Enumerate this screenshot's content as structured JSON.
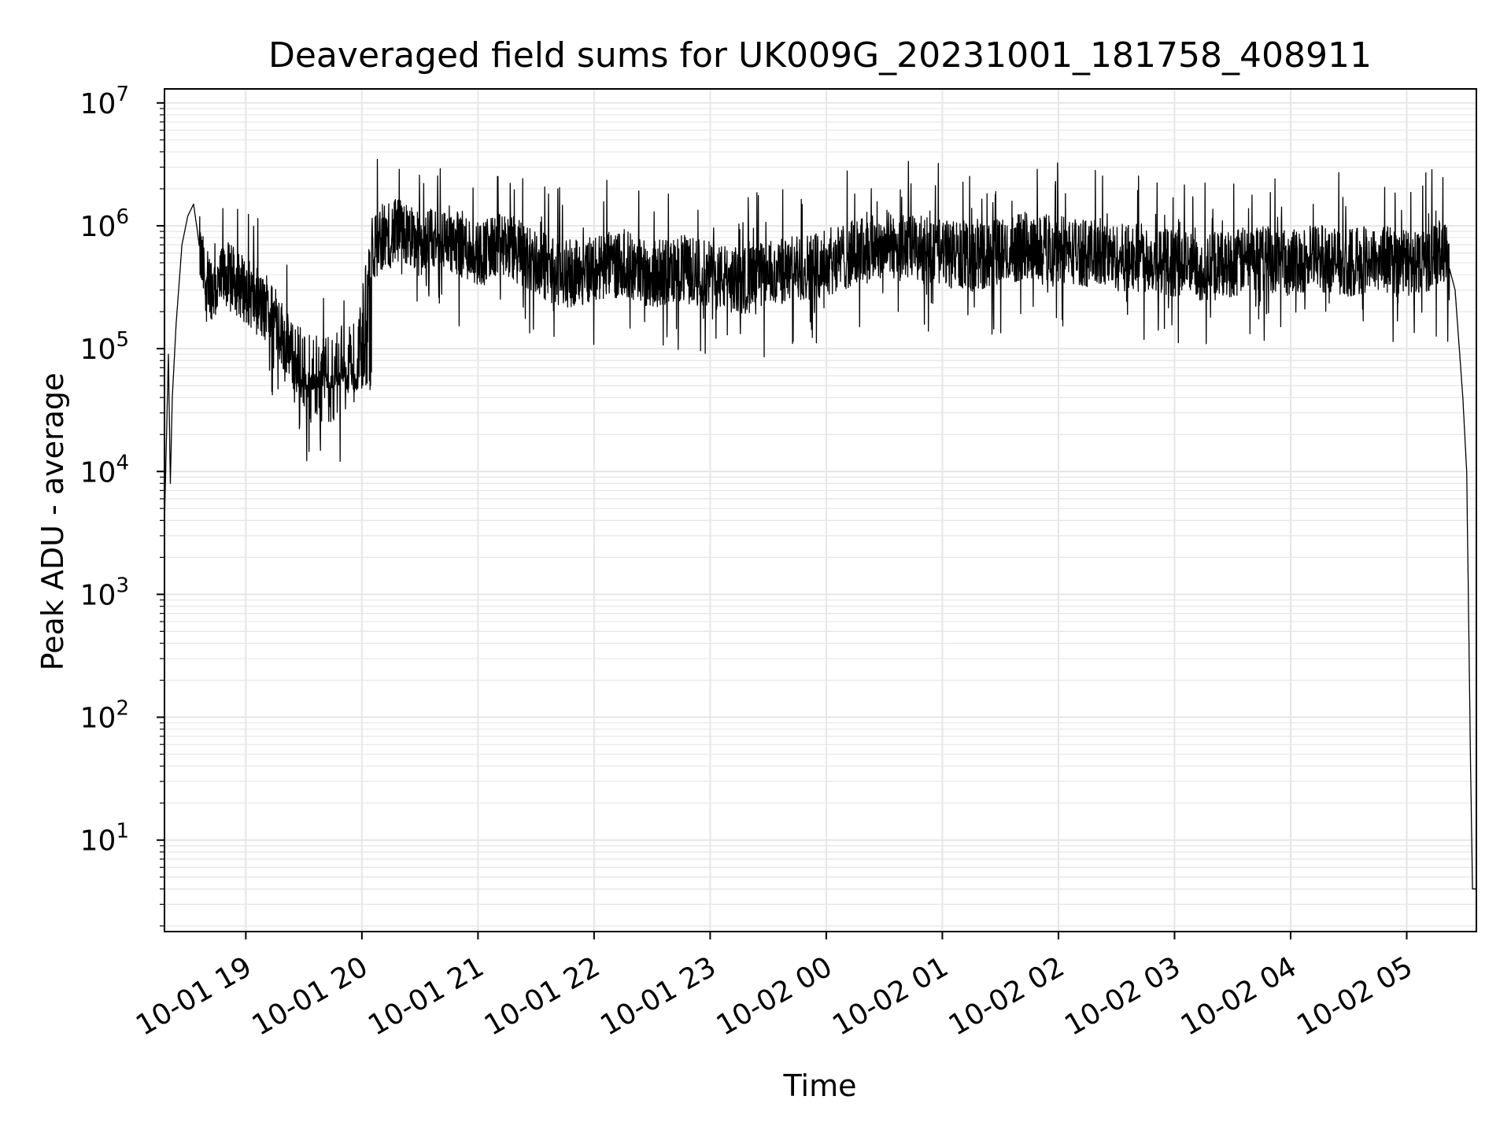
{
  "chart_data": {
    "type": "line",
    "title": "Deaveraged field sums for UK009G_20231001_181758_408911",
    "xlabel": "Time",
    "ylabel": "Peak ADU - average",
    "y_scale": "log",
    "ylim": [
      1.8,
      13000000
    ],
    "xlim": [
      "2023-10-01 18:17:58",
      "2023-10-02 05:36:00"
    ],
    "grid": true,
    "grid_color": "#e6e6e6",
    "line_color": "#000000",
    "x_ticks": [
      {
        "label": "10-01 19",
        "t": "2023-10-01 19:00:00"
      },
      {
        "label": "10-01 20",
        "t": "2023-10-01 20:00:00"
      },
      {
        "label": "10-01 21",
        "t": "2023-10-01 21:00:00"
      },
      {
        "label": "10-01 22",
        "t": "2023-10-01 22:00:00"
      },
      {
        "label": "10-01 23",
        "t": "2023-10-01 23:00:00"
      },
      {
        "label": "10-02 00",
        "t": "2023-10-02 00:00:00"
      },
      {
        "label": "10-02 01",
        "t": "2023-10-02 01:00:00"
      },
      {
        "label": "10-02 02",
        "t": "2023-10-02 02:00:00"
      },
      {
        "label": "10-02 03",
        "t": "2023-10-02 03:00:00"
      },
      {
        "label": "10-02 04",
        "t": "2023-10-02 04:00:00"
      },
      {
        "label": "10-02 05",
        "t": "2023-10-02 05:00:00"
      }
    ],
    "y_ticks": [
      {
        "base": "10",
        "exp": "1",
        "value": 10
      },
      {
        "base": "10",
        "exp": "2",
        "value": 100
      },
      {
        "base": "10",
        "exp": "3",
        "value": 1000
      },
      {
        "base": "10",
        "exp": "4",
        "value": 10000
      },
      {
        "base": "10",
        "exp": "5",
        "value": 100000
      },
      {
        "base": "10",
        "exp": "6",
        "value": 1000000
      },
      {
        "base": "10",
        "exp": "7",
        "value": 10000000
      }
    ],
    "series": [
      {
        "x": [
          "2023-10-01 18:17:58",
          "2023-10-01 18:20:00",
          "2023-10-01 18:21:00",
          "2023-10-01 18:22:00",
          "2023-10-01 18:24:00",
          "2023-10-01 18:27:00",
          "2023-10-01 18:30:00",
          "2023-10-01 18:33:00",
          "2023-10-01 18:35:00",
          "2023-10-01 18:37:00",
          "2023-10-01 18:40:00",
          "2023-10-01 18:45:00",
          "2023-10-01 18:50:00",
          "2023-10-01 18:55:00",
          "2023-10-01 19:00:00",
          "2023-10-01 19:05:00",
          "2023-10-01 19:10:00",
          "2023-10-01 19:15:00",
          "2023-10-01 19:20:00",
          "2023-10-01 19:25:00",
          "2023-10-01 19:30:00",
          "2023-10-01 19:35:00",
          "2023-10-01 19:40:00",
          "2023-10-01 19:45:00",
          "2023-10-01 19:50:00",
          "2023-10-01 19:55:00",
          "2023-10-01 20:00:00",
          "2023-10-01 20:05:00",
          "2023-10-01 20:10:00",
          "2023-10-01 20:20:00",
          "2023-10-01 20:30:00",
          "2023-10-01 20:45:00",
          "2023-10-01 21:00:00",
          "2023-10-01 21:15:00",
          "2023-10-01 21:30:00",
          "2023-10-01 21:45:00",
          "2023-10-01 22:00:00",
          "2023-10-01 22:15:00",
          "2023-10-01 22:30:00",
          "2023-10-01 22:45:00",
          "2023-10-01 23:00:00",
          "2023-10-01 23:15:00",
          "2023-10-01 23:30:00",
          "2023-10-01 23:45:00",
          "2023-10-02 00:00:00",
          "2023-10-02 00:15:00",
          "2023-10-02 00:30:00",
          "2023-10-02 00:45:00",
          "2023-10-02 01:00:00",
          "2023-10-02 01:15:00",
          "2023-10-02 01:30:00",
          "2023-10-02 01:45:00",
          "2023-10-02 02:00:00",
          "2023-10-02 02:15:00",
          "2023-10-02 02:30:00",
          "2023-10-02 02:45:00",
          "2023-10-02 03:00:00",
          "2023-10-02 03:15:00",
          "2023-10-02 03:30:00",
          "2023-10-02 03:45:00",
          "2023-10-02 04:00:00",
          "2023-10-02 04:15:00",
          "2023-10-02 04:30:00",
          "2023-10-02 04:45:00",
          "2023-10-02 05:00:00",
          "2023-10-02 05:10:00",
          "2023-10-02 05:20:00",
          "2023-10-02 05:25:00",
          "2023-10-02 05:29:00",
          "2023-10-02 05:31:00",
          "2023-10-02 05:33:00",
          "2023-10-02 05:34:00",
          "2023-10-02 05:36:00"
        ],
        "y": [
          3800,
          90000,
          8000,
          40000,
          160000,
          700000,
          1200000,
          1500000,
          900000,
          500000,
          350000,
          300000,
          400000,
          350000,
          300000,
          250000,
          200000,
          180000,
          120000,
          80000,
          60000,
          55000,
          60000,
          60000,
          70000,
          75000,
          150000,
          600000,
          800000,
          900000,
          700000,
          800000,
          600000,
          700000,
          500000,
          400000,
          450000,
          500000,
          400000,
          450000,
          400000,
          350000,
          400000,
          450000,
          500000,
          600000,
          700000,
          650000,
          600000,
          550000,
          600000,
          700000,
          650000,
          600000,
          550000,
          550000,
          500000,
          450000,
          500000,
          550000,
          500000,
          550000,
          500000,
          550000,
          500000,
          550000,
          600000,
          300000,
          40000,
          10000,
          40,
          4,
          4
        ]
      }
    ]
  }
}
